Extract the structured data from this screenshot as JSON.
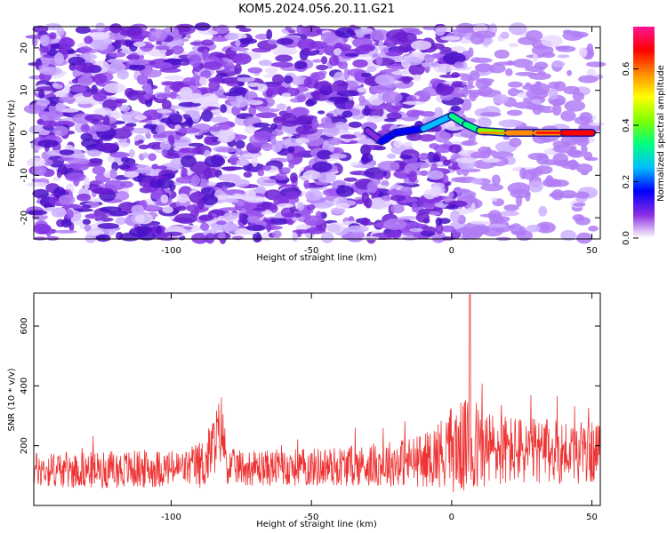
{
  "title": "KOM5.2024.056.20.11.G21",
  "chart_data": [
    {
      "type": "heatmap",
      "xlabel": "Height of straight line (km)",
      "ylabel": "Frequency (Hz)",
      "xlim": [
        -149,
        53
      ],
      "ylim": [
        -25,
        25
      ],
      "xticks": [
        -100,
        -50,
        0,
        50
      ],
      "yticks": [
        -20,
        -10,
        0,
        10,
        20
      ],
      "colorbar": {
        "label": "Normalized spectral amplitude",
        "range": [
          0,
          0.75
        ],
        "ticks": [
          0.0,
          0.2,
          0.4,
          0.6
        ],
        "colors": [
          "#ffffff",
          "#8a2be2",
          "#0000ff",
          "#00bfff",
          "#00ff7f",
          "#7fff00",
          "#ffff00",
          "#ff8c00",
          "#ff0000",
          "#ff1493"
        ]
      },
      "ridge": {
        "description_points_x": [
          -30,
          -25,
          -20,
          -10,
          0,
          5,
          10,
          20,
          30,
          40,
          50
        ],
        "frequency_hz": [
          0.5,
          -2,
          0,
          1,
          4,
          2,
          0.5,
          0,
          0,
          0,
          0
        ],
        "amplitude": [
          0.1,
          0.15,
          0.2,
          0.25,
          0.3,
          0.35,
          0.45,
          0.55,
          0.6,
          0.65,
          0.7
        ]
      }
    },
    {
      "type": "line",
      "xlabel": "Height of straight line (km)",
      "ylabel": "SNR (10 * v/v)",
      "xlim": [
        -149,
        53
      ],
      "ylim": [
        0,
        710
      ],
      "xticks": [
        -100,
        -50,
        0,
        50
      ],
      "yticks": [
        200,
        400,
        600
      ],
      "color": "#ee3333",
      "envelope": {
        "x": [
          -149,
          -130,
          -110,
          -95,
          -88,
          -84,
          -82,
          -80,
          -70,
          -50,
          -30,
          -10,
          -3,
          0,
          5,
          7,
          10,
          20,
          30,
          40,
          52
        ],
        "baseline": [
          120,
          118,
          122,
          125,
          140,
          220,
          260,
          130,
          125,
          128,
          135,
          150,
          180,
          190,
          195,
          200,
          190,
          185,
          180,
          180,
          175
        ],
        "amplitude": [
          60,
          60,
          65,
          60,
          90,
          110,
          120,
          60,
          60,
          65,
          70,
          90,
          120,
          150,
          160,
          200,
          140,
          120,
          110,
          110,
          100
        ]
      }
    }
  ]
}
